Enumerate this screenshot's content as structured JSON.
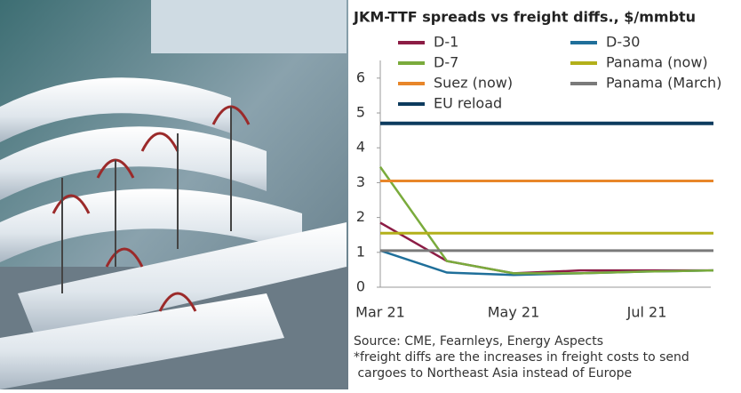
{
  "chart_data": {
    "type": "line",
    "title": "JKM-TTF spreads vs freight diffs., $/mmbtu",
    "categories": [
      "Mar 21",
      null,
      "May 21",
      null,
      "Jul 21",
      null
    ],
    "series": [
      {
        "name": "D-1",
        "color": "#8c1c45",
        "values": [
          1.85,
          0.75,
          0.4,
          0.48,
          0.48,
          0.48
        ]
      },
      {
        "name": "D-30",
        "color": "#1f6f9a",
        "values": [
          1.05,
          0.42,
          0.35,
          0.4,
          0.45,
          0.48
        ]
      },
      {
        "name": "D-7",
        "color": "#7aab3c",
        "values": [
          3.45,
          0.75,
          0.4,
          0.4,
          0.45,
          0.48
        ]
      },
      {
        "name": "Panama (now)",
        "color": "#b3b01a",
        "values": [
          1.55,
          1.55,
          1.55,
          1.55,
          1.55,
          1.55
        ]
      },
      {
        "name": "Suez (now)",
        "color": "#e8862a",
        "values": [
          3.05,
          3.05,
          3.05,
          3.05,
          3.05,
          3.05
        ]
      },
      {
        "name": "Panama (March)",
        "color": "#7a7a7a",
        "values": [
          1.05,
          1.05,
          1.05,
          1.05,
          1.05,
          1.05
        ]
      },
      {
        "name": "EU reload",
        "color": "#0d3b5e",
        "values": [
          4.7,
          4.7,
          4.7,
          4.7,
          4.7,
          4.7
        ]
      }
    ],
    "ylim": [
      0,
      6.2
    ],
    "yticks": [
      0,
      1,
      2,
      3,
      4,
      5,
      6
    ],
    "notes": [
      "Source: CME, Fearnleys, Energy Aspects",
      "*freight diffs are the increases in freight costs to send",
      " cargoes to Northeast Asia instead of Europe"
    ]
  }
}
